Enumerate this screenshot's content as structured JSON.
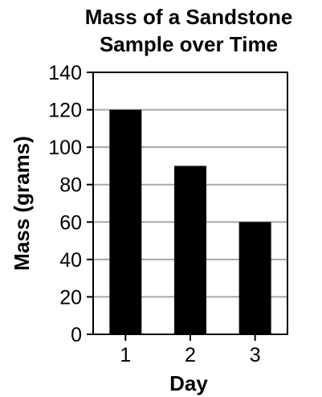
{
  "chart_data": {
    "type": "bar",
    "title_lines": [
      "Mass of a Sandstone",
      "Sample over Time"
    ],
    "xlabel": "Day",
    "ylabel": "Mass (grams)",
    "categories": [
      "1",
      "2",
      "3"
    ],
    "values": [
      120,
      90,
      60
    ],
    "ylim": [
      0,
      140
    ],
    "yticks": [
      0,
      20,
      40,
      60,
      80,
      100,
      120,
      140
    ],
    "grid": true,
    "bar_color": "#000000",
    "grid_color": "#a6a6a6"
  }
}
